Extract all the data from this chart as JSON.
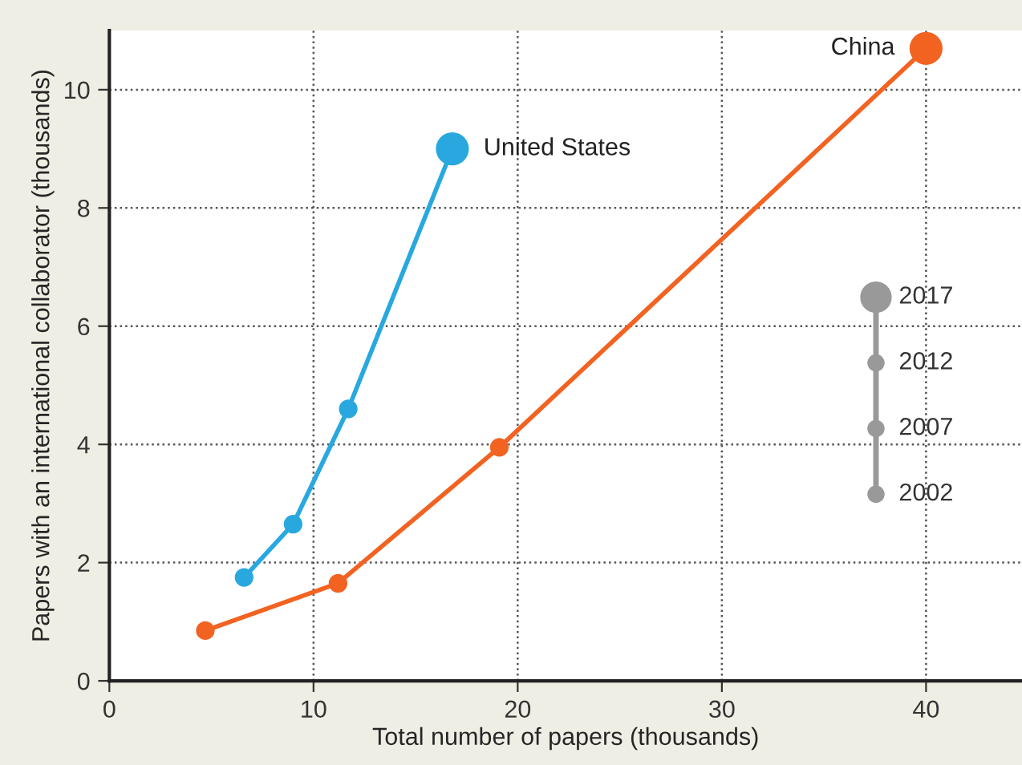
{
  "chart_data": {
    "type": "line",
    "xlabel": "Total number of papers (thousands)",
    "ylabel": "Papers with an international collaborator (thousands)",
    "series": [
      {
        "name": "United States",
        "color": "#29a8e0",
        "x": [
          6.6,
          9.0,
          11.7,
          16.8
        ],
        "values": [
          1.75,
          2.65,
          4.6,
          9.0
        ]
      },
      {
        "name": "China",
        "color": "#f26322",
        "x": [
          4.7,
          11.2,
          19.1,
          40.0
        ],
        "values": [
          0.85,
          1.65,
          3.95,
          10.7
        ]
      }
    ],
    "xlim": [
      0,
      44.7
    ],
    "xticks": [
      0,
      10,
      20,
      30,
      40
    ],
    "ylim": [
      0,
      11
    ],
    "yticks": [
      0,
      2,
      4,
      6,
      8,
      10
    ],
    "grid": true,
    "marker": "circle",
    "line_style": "solid",
    "legend": false,
    "annotations": [
      "2017",
      "2012",
      "2007",
      "2002"
    ]
  }
}
